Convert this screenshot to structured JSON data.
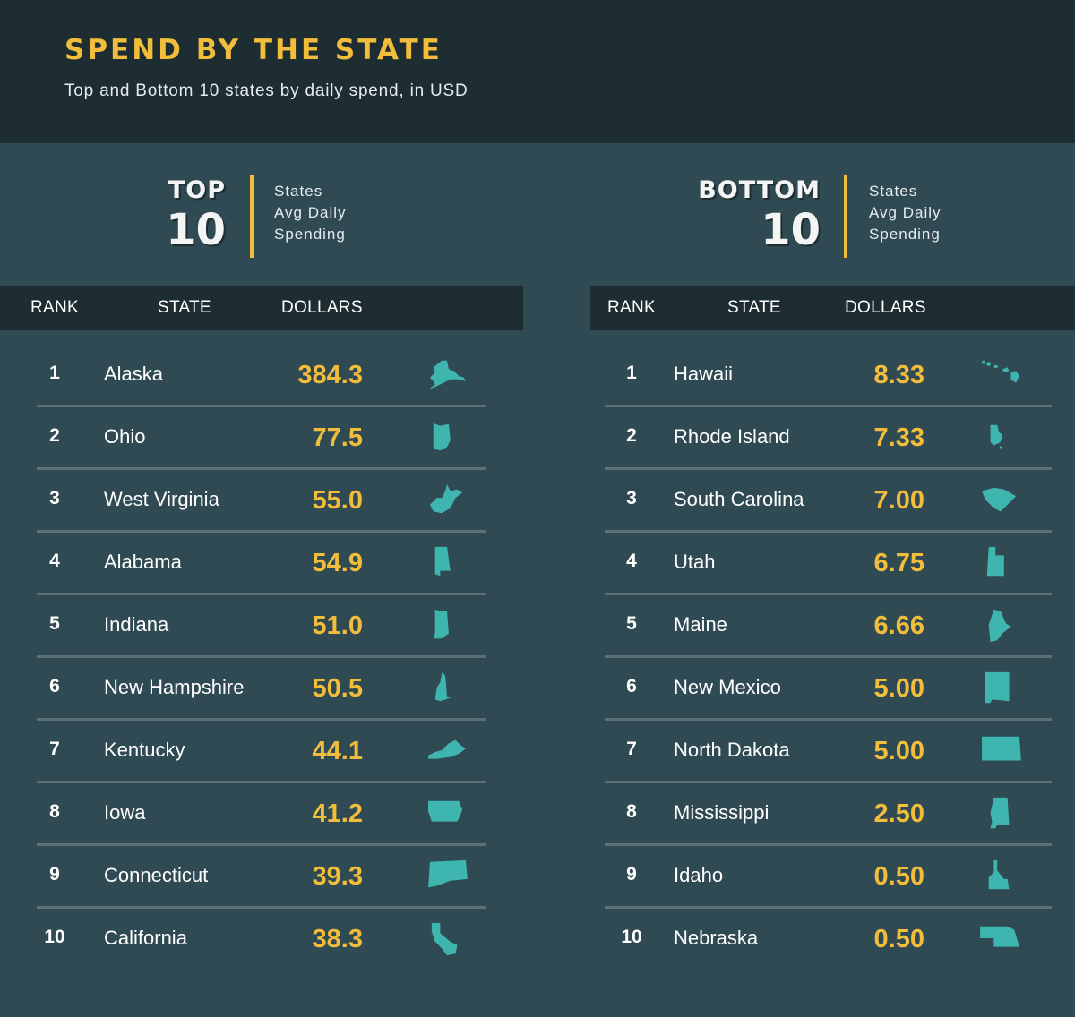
{
  "title": "SPEND BY THE STATE",
  "subtitle": "Top and Bottom 10 states by daily spend, in USD",
  "colors": {
    "accent": "#f1bd3b",
    "icon": "#3fb5b0",
    "background": "#2f4a53",
    "header": "#1d2d32"
  },
  "columns": {
    "rank": "RANK",
    "state": "STATE",
    "dollars": "DOLLARS"
  },
  "top": {
    "line1": "TOP",
    "line2": "10",
    "desc": [
      "States",
      "Avg Daily",
      "Spending"
    ]
  },
  "bottom": {
    "line1": "BOTTOM",
    "line2": "10",
    "desc": [
      "States",
      "Avg Daily",
      "Spending"
    ]
  },
  "chart_data": [
    {
      "type": "table",
      "title": "TOP 10",
      "columns": [
        "RANK",
        "STATE",
        "DOLLARS"
      ],
      "rows": [
        {
          "rank": "1",
          "state": "Alaska",
          "dollars": "384.3",
          "icon": "alaska-icon"
        },
        {
          "rank": "2",
          "state": "Ohio",
          "dollars": "77.5",
          "icon": "ohio-icon"
        },
        {
          "rank": "3",
          "state": "West Virginia",
          "dollars": "55.0",
          "icon": "west-virginia-icon"
        },
        {
          "rank": "4",
          "state": "Alabama",
          "dollars": "54.9",
          "icon": "alabama-icon"
        },
        {
          "rank": "5",
          "state": "Indiana",
          "dollars": "51.0",
          "icon": "indiana-icon"
        },
        {
          "rank": "6",
          "state": "New Hampshire",
          "dollars": "50.5",
          "icon": "new-hampshire-icon"
        },
        {
          "rank": "7",
          "state": "Kentucky",
          "dollars": "44.1",
          "icon": "kentucky-icon"
        },
        {
          "rank": "8",
          "state": "Iowa",
          "dollars": "41.2",
          "icon": "iowa-icon"
        },
        {
          "rank": "9",
          "state": "Connecticut",
          "dollars": "39.3",
          "icon": "connecticut-icon"
        },
        {
          "rank": "10",
          "state": "California",
          "dollars": "38.3",
          "icon": "california-icon"
        }
      ]
    },
    {
      "type": "table",
      "title": "BOTTOM 10",
      "columns": [
        "RANK",
        "STATE",
        "DOLLARS"
      ],
      "rows": [
        {
          "rank": "1",
          "state": "Hawaii",
          "dollars": "8.33",
          "icon": "hawaii-icon"
        },
        {
          "rank": "2",
          "state": "Rhode Island",
          "dollars": "7.33",
          "icon": "rhode-island-icon"
        },
        {
          "rank": "3",
          "state": "South Carolina",
          "dollars": "7.00",
          "icon": "south-carolina-icon"
        },
        {
          "rank": "4",
          "state": "Utah",
          "dollars": "6.75",
          "icon": "utah-icon"
        },
        {
          "rank": "5",
          "state": "Maine",
          "dollars": "6.66",
          "icon": "maine-icon"
        },
        {
          "rank": "6",
          "state": "New Mexico",
          "dollars": "5.00",
          "icon": "new-mexico-icon"
        },
        {
          "rank": "7",
          "state": "North Dakota",
          "dollars": "5.00",
          "icon": "north-dakota-icon"
        },
        {
          "rank": "8",
          "state": "Mississippi",
          "dollars": "2.50",
          "icon": "mississippi-icon"
        },
        {
          "rank": "9",
          "state": "Idaho",
          "dollars": "0.50",
          "icon": "idaho-icon"
        },
        {
          "rank": "10",
          "state": "Nebraska",
          "dollars": "0.50",
          "icon": "nebraska-icon"
        }
      ]
    }
  ]
}
